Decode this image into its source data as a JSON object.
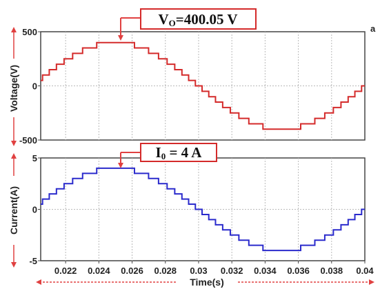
{
  "chart_data": [
    {
      "type": "line",
      "ylabel": "Voltage(V)",
      "ylim": [
        -500,
        500
      ],
      "yticks": [
        {
          "value": 500,
          "label": "500"
        },
        {
          "value": 0,
          "label": "0"
        },
        {
          "value": -500,
          "label": "-500"
        }
      ],
      "xlim": [
        0.0205,
        0.04
      ],
      "amplitude": 400.05,
      "frequency_hz": 50,
      "staircase_levels": 16,
      "grid": true,
      "color": "#d42a2a",
      "annotation": {
        "text": "VO=400.05 V",
        "x": 0.025
      }
    },
    {
      "type": "line",
      "ylabel": "Current(A)",
      "ylim": [
        -5,
        5
      ],
      "yticks": [
        {
          "value": 5,
          "label": "5"
        },
        {
          "value": 0,
          "label": "0"
        },
        {
          "value": -5,
          "label": "-5"
        }
      ],
      "xlim": [
        0.0205,
        0.04
      ],
      "amplitude": 4,
      "frequency_hz": 50,
      "staircase_levels": 16,
      "grid": true,
      "color": "#2a2acc",
      "annotation": {
        "text": "I0 = 4 A",
        "x": 0.025
      }
    }
  ],
  "x_axis": {
    "label": "Time(s)",
    "ticks": [
      {
        "value": 0.022,
        "label": "0.022"
      },
      {
        "value": 0.024,
        "label": "0.024"
      },
      {
        "value": 0.026,
        "label": "0.026"
      },
      {
        "value": 0.028,
        "label": "0.028"
      },
      {
        "value": 0.03,
        "label": "0.03"
      },
      {
        "value": 0.032,
        "label": "0.032"
      },
      {
        "value": 0.034,
        "label": "0.034"
      },
      {
        "value": 0.036,
        "label": "0.036"
      },
      {
        "value": 0.038,
        "label": "0.038"
      },
      {
        "value": 0.04,
        "label": "0.04"
      }
    ]
  },
  "corner_mark": "a",
  "colors": {
    "arrow": "#e04040",
    "frame": "#444444",
    "callout_border": "#d42a2a"
  }
}
